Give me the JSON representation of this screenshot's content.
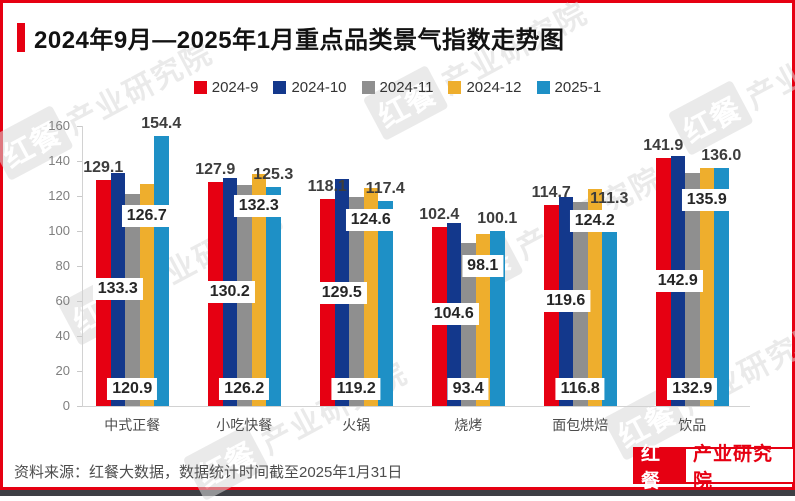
{
  "page": {
    "title": "2024年9月—2025年1月重点品类景气指数走势图",
    "source_note": "资料来源：红餐大数据，数据统计时间截至2025年1月31日",
    "logo": {
      "left": "红餐",
      "right": "产业研究院"
    },
    "watermark": {
      "box": "红餐",
      "text": "产业研究院"
    },
    "colors": {
      "frame_border": "#e60012",
      "bottom_strip": "#3d4045",
      "title_accent": "#e60012"
    }
  },
  "chart_data": {
    "type": "bar",
    "title": "2024年9月—2025年1月重点品类景气指数走势图",
    "categories": [
      "中式正餐",
      "小吃快餐",
      "火锅",
      "烧烤",
      "面包烘焙",
      "饮品"
    ],
    "series": [
      {
        "name": "2024-9",
        "color": "#e60012",
        "values": [
          129.1,
          127.9,
          118.1,
          102.4,
          114.7,
          141.9
        ]
      },
      {
        "name": "2024-10",
        "color": "#13388c",
        "values": [
          133.3,
          130.2,
          129.5,
          104.6,
          119.6,
          142.9
        ]
      },
      {
        "name": "2024-11",
        "color": "#8f8f8f",
        "values": [
          120.9,
          126.2,
          119.2,
          93.4,
          116.8,
          132.9
        ]
      },
      {
        "name": "2024-12",
        "color": "#eeae2d",
        "values": [
          126.7,
          132.3,
          124.6,
          98.1,
          124.2,
          135.9
        ]
      },
      {
        "name": "2025-1",
        "color": "#1e90c6",
        "values": [
          154.4,
          125.3,
          117.4,
          100.1,
          111.3,
          136.0
        ]
      }
    ],
    "xlabel": "",
    "ylabel": "",
    "ylim": [
      0,
      160
    ],
    "ytick_step": 20,
    "grid": false,
    "legend_position": "top",
    "value_labels_decimals": 1
  }
}
